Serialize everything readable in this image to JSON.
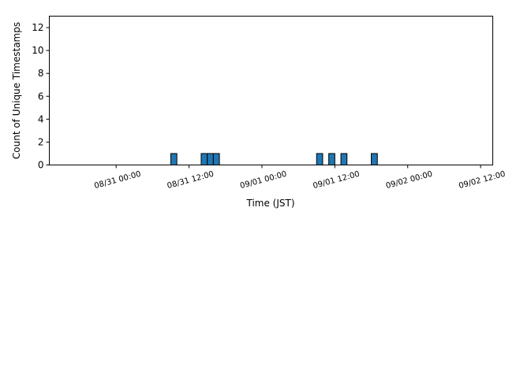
{
  "chart_data": {
    "type": "bar",
    "title": "",
    "xlabel": "Time (JST)",
    "ylabel": "Count of Unique Timestamps",
    "ylim": [
      0,
      13
    ],
    "yticks": [
      0,
      2,
      4,
      6,
      8,
      10,
      12
    ],
    "xlim": [
      "08/30 13:00",
      "09/02 14:00"
    ],
    "xticks": [
      "08/31 00:00",
      "08/31 12:00",
      "09/01 00:00",
      "09/01 12:00",
      "09/02 00:00",
      "09/02 12:00"
    ],
    "bin_hours": 1,
    "bins": [
      {
        "start": "08/31 09:00",
        "value": 1
      },
      {
        "start": "08/31 14:00",
        "value": 1
      },
      {
        "start": "08/31 15:00",
        "value": 1
      },
      {
        "start": "08/31 16:00",
        "value": 1
      },
      {
        "start": "09/01 09:00",
        "value": 1
      },
      {
        "start": "09/01 11:00",
        "value": 1
      },
      {
        "start": "09/01 13:00",
        "value": 1
      },
      {
        "start": "09/01 18:00",
        "value": 1
      }
    ],
    "baseline": {
      "from": "08/30 15:00",
      "to": "09/02 14:00"
    },
    "bar_color": "#1f77b4",
    "edge_color": "#000000",
    "grid": false
  }
}
